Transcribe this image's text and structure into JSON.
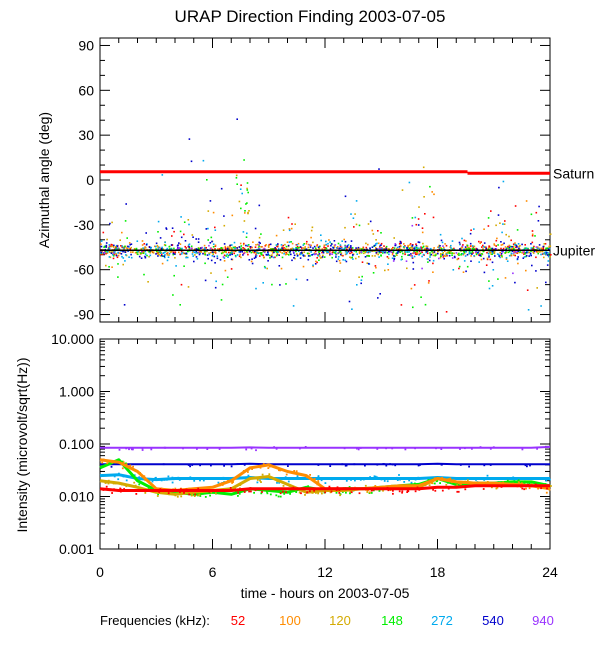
{
  "chart_data": [
    {
      "type": "scatter",
      "title": "URAP Direction Finding  2003-07-05",
      "ylabel": "Azimuthal angle (deg)",
      "xlim": [
        0,
        24
      ],
      "ylim": [
        -95,
        95
      ],
      "yticks": [
        90,
        60,
        30,
        0,
        -30,
        -60,
        -90
      ],
      "yticklabels": [
        "90",
        "60",
        "30",
        "0",
        "-30",
        "-60",
        "-90"
      ],
      "references": [
        {
          "name": "Saturn",
          "segments": [
            {
              "x": [
                0,
                19.6
              ],
              "y": 5.5
            },
            {
              "x": [
                19.6,
                24
              ],
              "y": 4.5
            }
          ],
          "color": "#ff0000"
        },
        {
          "name": "Jupiter",
          "segments": [
            {
              "x": [
                0,
                24
              ],
              "y": -47
            }
          ],
          "color": "#000000"
        }
      ],
      "series": [
        {
          "name": "52",
          "color": "#ff0000",
          "center": -46,
          "spread": 3,
          "scatter": 4
        },
        {
          "name": "100",
          "color": "#ff8c00",
          "center": -46,
          "spread": 3,
          "scatter": 5
        },
        {
          "name": "120",
          "color": "#d4aa00",
          "center": -47,
          "spread": 3,
          "scatter": 6
        },
        {
          "name": "148",
          "color": "#00ee00",
          "center": -47,
          "spread": 3,
          "scatter": 6
        },
        {
          "name": "272",
          "color": "#00aaee",
          "center": -47,
          "spread": 4,
          "scatter": 8
        },
        {
          "name": "540",
          "color": "#0000cc",
          "center": -47,
          "spread": 5,
          "scatter": 10
        },
        {
          "name": "940",
          "color": "#9933ff",
          "center": -47,
          "spread": 3,
          "scatter": 3
        }
      ]
    },
    {
      "type": "line",
      "ylabel": "Intensity (microvolt/sqrt(Hz))",
      "xlabel": "time - hours on 2003-07-05",
      "xlim": [
        0,
        24
      ],
      "xticks": [
        0,
        6,
        12,
        18,
        24
      ],
      "xticklabels": [
        "0",
        "6",
        "12",
        "18",
        "24"
      ],
      "ylim": [
        0.001,
        10
      ],
      "yscale": "log",
      "yticks": [
        10,
        1,
        0.1,
        0.01,
        0.001
      ],
      "yticklabels": [
        "10.000",
        "1.000",
        "0.100",
        "0.010",
        "0.001"
      ],
      "series": [
        {
          "name": "940",
          "color": "#9933ff",
          "values": [
            0.085,
            0.085,
            0.085,
            0.085,
            0.085,
            0.085,
            0.085,
            0.085,
            0.086,
            0.085,
            0.085,
            0.085,
            0.085,
            0.085,
            0.085,
            0.085,
            0.085,
            0.085,
            0.085,
            0.085,
            0.085,
            0.085,
            0.085,
            0.085,
            0.088
          ]
        },
        {
          "name": "540",
          "color": "#0000cc",
          "values": [
            0.041,
            0.041,
            0.041,
            0.041,
            0.041,
            0.041,
            0.041,
            0.041,
            0.042,
            0.041,
            0.041,
            0.041,
            0.041,
            0.041,
            0.041,
            0.041,
            0.041,
            0.041,
            0.042,
            0.041,
            0.041,
            0.041,
            0.041,
            0.041,
            0.041
          ]
        },
        {
          "name": "272",
          "color": "#00aaee",
          "values": [
            0.025,
            0.026,
            0.022,
            0.021,
            0.022,
            0.022,
            0.022,
            0.022,
            0.023,
            0.022,
            0.022,
            0.022,
            0.022,
            0.022,
            0.022,
            0.022,
            0.022,
            0.022,
            0.023,
            0.022,
            0.022,
            0.022,
            0.022,
            0.022,
            0.022
          ]
        },
        {
          "name": "148",
          "color": "#00ee00",
          "values": [
            0.035,
            0.05,
            0.02,
            0.013,
            0.012,
            0.011,
            0.012,
            0.011,
            0.014,
            0.013,
            0.012,
            0.015,
            0.013,
            0.014,
            0.014,
            0.015,
            0.016,
            0.017,
            0.022,
            0.017,
            0.018,
            0.018,
            0.019,
            0.019,
            0.016
          ]
        },
        {
          "name": "120",
          "color": "#d4aa00",
          "values": [
            0.02,
            0.018,
            0.015,
            0.012,
            0.011,
            0.012,
            0.013,
            0.014,
            0.022,
            0.024,
            0.017,
            0.012,
            0.013,
            0.013,
            0.014,
            0.014,
            0.015,
            0.015,
            0.022,
            0.019,
            0.018,
            0.017,
            0.017,
            0.016,
            0.016
          ]
        },
        {
          "name": "100",
          "color": "#ff8c00",
          "values": [
            0.05,
            0.045,
            0.03,
            0.014,
            0.013,
            0.014,
            0.015,
            0.02,
            0.035,
            0.04,
            0.03,
            0.025,
            0.014,
            0.014,
            0.014,
            0.015,
            0.016,
            0.016,
            0.022,
            0.019,
            0.018,
            0.018,
            0.017,
            0.016,
            0.014
          ]
        },
        {
          "name": "52",
          "color": "#ff0000",
          "values": [
            0.014,
            0.013,
            0.013,
            0.013,
            0.013,
            0.013,
            0.013,
            0.013,
            0.014,
            0.014,
            0.014,
            0.014,
            0.014,
            0.014,
            0.014,
            0.014,
            0.014,
            0.014,
            0.015,
            0.015,
            0.016,
            0.016,
            0.016,
            0.016,
            0.016
          ]
        }
      ]
    }
  ],
  "legend": {
    "label": "Frequencies (kHz):",
    "items": [
      {
        "text": "52",
        "color": "#ff0000"
      },
      {
        "text": "100",
        "color": "#ff8c00"
      },
      {
        "text": "120",
        "color": "#d4aa00"
      },
      {
        "text": "148",
        "color": "#00ee00"
      },
      {
        "text": "272",
        "color": "#00aaee"
      },
      {
        "text": "540",
        "color": "#0000cc"
      },
      {
        "text": "940",
        "color": "#9933ff"
      }
    ]
  }
}
